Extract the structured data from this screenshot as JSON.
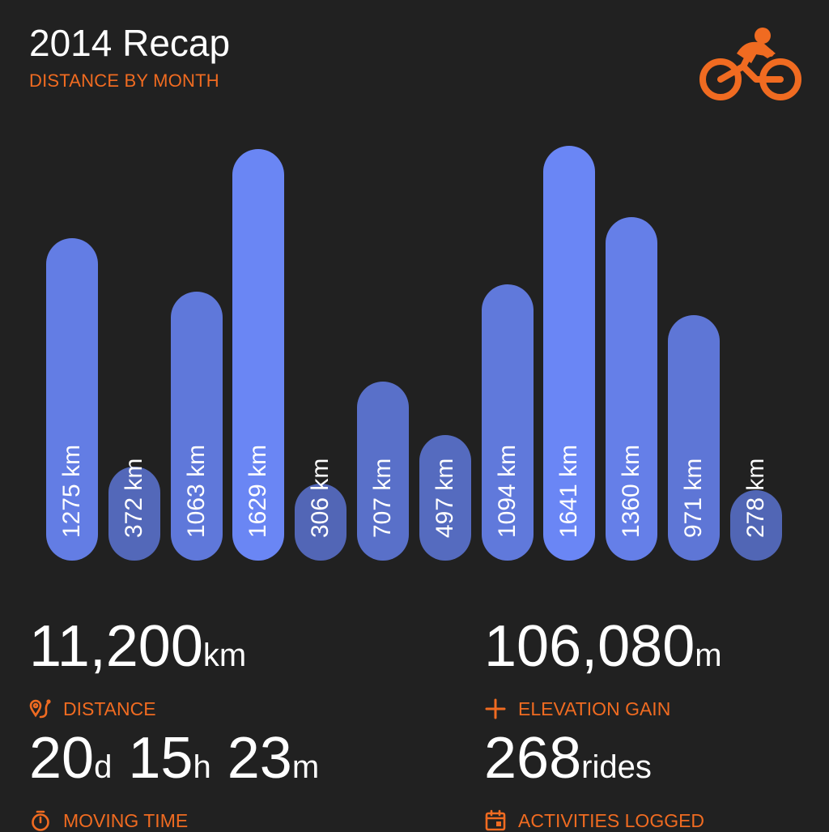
{
  "header": {
    "title": "2014 Recap",
    "subtitle": "DISTANCE BY MONTH"
  },
  "icons": {
    "brand": "cyclist-icon",
    "distance": "route-icon",
    "elevation": "plus-icon",
    "moving_time": "stopwatch-icon",
    "activities": "calendar-icon"
  },
  "colors": {
    "background": "#212121",
    "accent": "#f06b21",
    "bar_high": "#6a86f5",
    "bar_low": "#4c5fa8"
  },
  "chart_data": {
    "type": "bar",
    "title": "DISTANCE BY MONTH",
    "categories": [
      "",
      "",
      "",
      "",
      "",
      "",
      "",
      "",
      "",
      "",
      "",
      ""
    ],
    "values": [
      1275,
      372,
      1063,
      1629,
      306,
      707,
      497,
      1094,
      1641,
      1360,
      971,
      278
    ],
    "unit": "km",
    "labels": [
      "1275 km",
      "372 km",
      "1063 km",
      "1629 km",
      "306 km",
      "707 km",
      "497 km",
      "1094 km",
      "1641 km",
      "1360 km",
      "971 km",
      "278 km"
    ],
    "ylim": [
      0,
      1641
    ],
    "grid": false
  },
  "stats": {
    "distance": {
      "value": "11,200",
      "unit": "km",
      "label": "DISTANCE"
    },
    "elevation": {
      "value": "106,080",
      "unit": "m",
      "label": "ELEVATION GAIN"
    },
    "moving_time": {
      "days": "20",
      "days_unit": "d",
      "hours": "15",
      "hours_unit": "h",
      "minutes": "23",
      "minutes_unit": "m",
      "label": "MOVING TIME"
    },
    "activities": {
      "value": "268",
      "unit": "rides",
      "label": "ACTIVITIES LOGGED"
    }
  }
}
